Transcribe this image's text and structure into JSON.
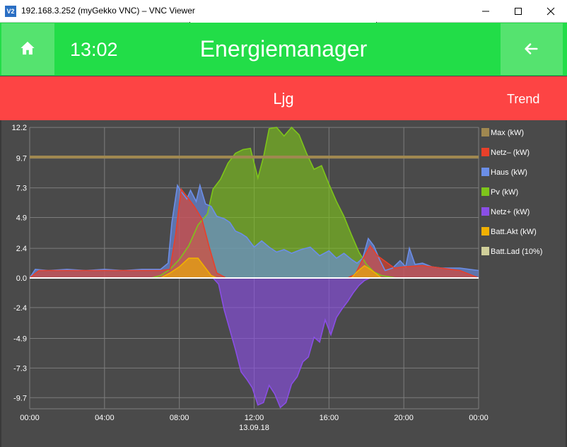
{
  "window": {
    "app_icon": "V2",
    "title": "192.168.3.252 (myGekko VNC) – VNC Viewer",
    "minimize_icon": "minimize-icon",
    "maximize_icon": "maximize-icon",
    "close_icon": "close-icon"
  },
  "header": {
    "time": "13:02",
    "title": "Energiemanager",
    "home_icon": "home-icon",
    "back_icon": "arrow-left-icon",
    "color": "#22dd48"
  },
  "subheader": {
    "title": "Ljg",
    "trend_label": "Trend",
    "color": "#fd4444"
  },
  "chart_data": {
    "type": "area",
    "x_ticks": [
      "00:00",
      "04:00",
      "08:00",
      "12:00",
      "16:00",
      "20:00",
      "00:00"
    ],
    "x_sublabel": "13.09.18",
    "x_range": [
      0,
      24
    ],
    "y_ticks": [
      "12.2",
      "9.7",
      "7.3",
      "4.9",
      "2.4",
      "0.0",
      "-2.4",
      "-4.9",
      "-7.3",
      "-9.7"
    ],
    "y_range": [
      -10.3,
      12.2
    ],
    "grid": true,
    "legend_position": "right",
    "series": [
      {
        "name": "Max (kW)",
        "color": "#a08850",
        "x": [
          0,
          24
        ],
        "y": [
          9.8,
          9.8
        ]
      },
      {
        "name": "Netz– (kW)",
        "color": "#e8402a",
        "x": [
          0,
          0.5,
          3,
          6,
          7,
          7.5,
          7.8,
          8.1,
          8.4,
          8.8,
          9.2,
          9.6,
          10.0,
          10.5,
          11,
          12,
          13,
          14,
          15,
          16,
          17,
          17.4,
          17.8,
          18.2,
          18.6,
          19.5,
          20,
          21,
          22,
          23,
          24
        ],
        "y": [
          0,
          0.6,
          0.6,
          0.6,
          0.6,
          0.7,
          3.5,
          7.2,
          6.6,
          5.8,
          4.8,
          2.5,
          0.4,
          0,
          0,
          0,
          0,
          0,
          0,
          0,
          0,
          0.3,
          1.5,
          2.6,
          1.8,
          0.8,
          0.9,
          1.0,
          0.8,
          0.6,
          0
        ]
      },
      {
        "name": "Haus (kW)",
        "color": "#6b8ee8",
        "x": [
          0,
          0.3,
          1,
          2,
          3,
          4,
          5,
          6,
          7,
          7.4,
          7.6,
          7.9,
          8.1,
          8.4,
          8.6,
          8.9,
          9.1,
          9.4,
          9.7,
          10.0,
          10.4,
          10.7,
          11.0,
          11.3,
          11.6,
          12.0,
          12.4,
          12.8,
          13.2,
          13.6,
          14,
          14.5,
          15,
          15.5,
          16,
          16.4,
          16.8,
          17.2,
          17.5,
          17.8,
          18.1,
          18.4,
          18.7,
          19.0,
          19.4,
          19.8,
          20.1,
          20.3,
          20.6,
          21,
          21.5,
          22,
          23,
          24
        ],
        "y": [
          0,
          0.7,
          0.6,
          0.7,
          0.6,
          0.7,
          0.6,
          0.7,
          0.7,
          1.2,
          4.5,
          7.5,
          7.0,
          6.4,
          7.1,
          6.2,
          7.5,
          6.0,
          5.8,
          5.0,
          4.8,
          4.5,
          3.8,
          3.6,
          3.3,
          2.5,
          3.0,
          2.5,
          2.1,
          2.3,
          2.0,
          2.3,
          2.5,
          1.8,
          2.2,
          1.6,
          2.0,
          1.5,
          1.2,
          1.6,
          3.2,
          2.6,
          1.5,
          0.6,
          0.8,
          1.4,
          0.9,
          2.4,
          1.1,
          1.2,
          0.9,
          0.8,
          0.8,
          0.6
        ]
      },
      {
        "name": "Pv (kW)",
        "color": "#7ec51a",
        "x": [
          0,
          6.5,
          7.0,
          7.5,
          8.0,
          8.5,
          9.0,
          9.5,
          9.8,
          10.2,
          10.6,
          11.0,
          11.4,
          11.8,
          12.2,
          12.5,
          12.8,
          13.2,
          13.6,
          14.0,
          14.4,
          14.8,
          15.2,
          15.6,
          16.0,
          16.4,
          16.8,
          17.2,
          17.6,
          18.0,
          18.4,
          18.8,
          19.2,
          19.6,
          20.0,
          24
        ],
        "y": [
          0,
          0,
          0.2,
          0.7,
          1.5,
          2.6,
          4.3,
          5.2,
          7.2,
          8.0,
          9.3,
          10.1,
          10.4,
          10.5,
          8.1,
          9.8,
          12.1,
          12.2,
          11.5,
          12.2,
          11.6,
          10.1,
          8.8,
          9.1,
          7.6,
          6.2,
          5.0,
          3.5,
          2.1,
          1.1,
          0.5,
          0.2,
          0.1,
          0,
          0,
          0
        ]
      },
      {
        "name": "Netz+ (kW)",
        "color": "#8a4ee6",
        "x": [
          0,
          9.8,
          10.1,
          10.4,
          10.7,
          11.0,
          11.3,
          11.6,
          11.9,
          12.2,
          12.5,
          12.8,
          13.1,
          13.4,
          13.7,
          14.0,
          14.3,
          14.6,
          14.9,
          15.2,
          15.5,
          15.8,
          16.1,
          16.4,
          16.7,
          17.0,
          17.3,
          17.6,
          17.9,
          18.2,
          24
        ],
        "y": [
          0,
          0,
          -0.5,
          -2.6,
          -4.2,
          -5.8,
          -7.6,
          -8.2,
          -8.9,
          -10.3,
          -10.1,
          -8.7,
          -9.4,
          -10.5,
          -10.1,
          -8.6,
          -8.0,
          -6.8,
          -6.4,
          -4.8,
          -5.2,
          -3.4,
          -4.6,
          -3.2,
          -2.5,
          -1.9,
          -1.2,
          -0.6,
          -0.2,
          0,
          0
        ]
      },
      {
        "name": "Batt.Akt (kW)",
        "color": "#f0b000",
        "x": [
          0,
          7.0,
          7.5,
          8.0,
          8.5,
          9.0,
          9.4,
          9.7,
          10.0,
          17.2,
          17.5,
          17.9,
          18.3,
          18.8,
          24
        ],
        "y": [
          0,
          0,
          0.4,
          0.9,
          1.6,
          1.6,
          0.8,
          0.2,
          0,
          0,
          0.5,
          1.0,
          0.6,
          0,
          0
        ]
      },
      {
        "name": "Batt.Lad (10%)",
        "color": "#d0cf9a",
        "x": [],
        "y": []
      }
    ]
  }
}
